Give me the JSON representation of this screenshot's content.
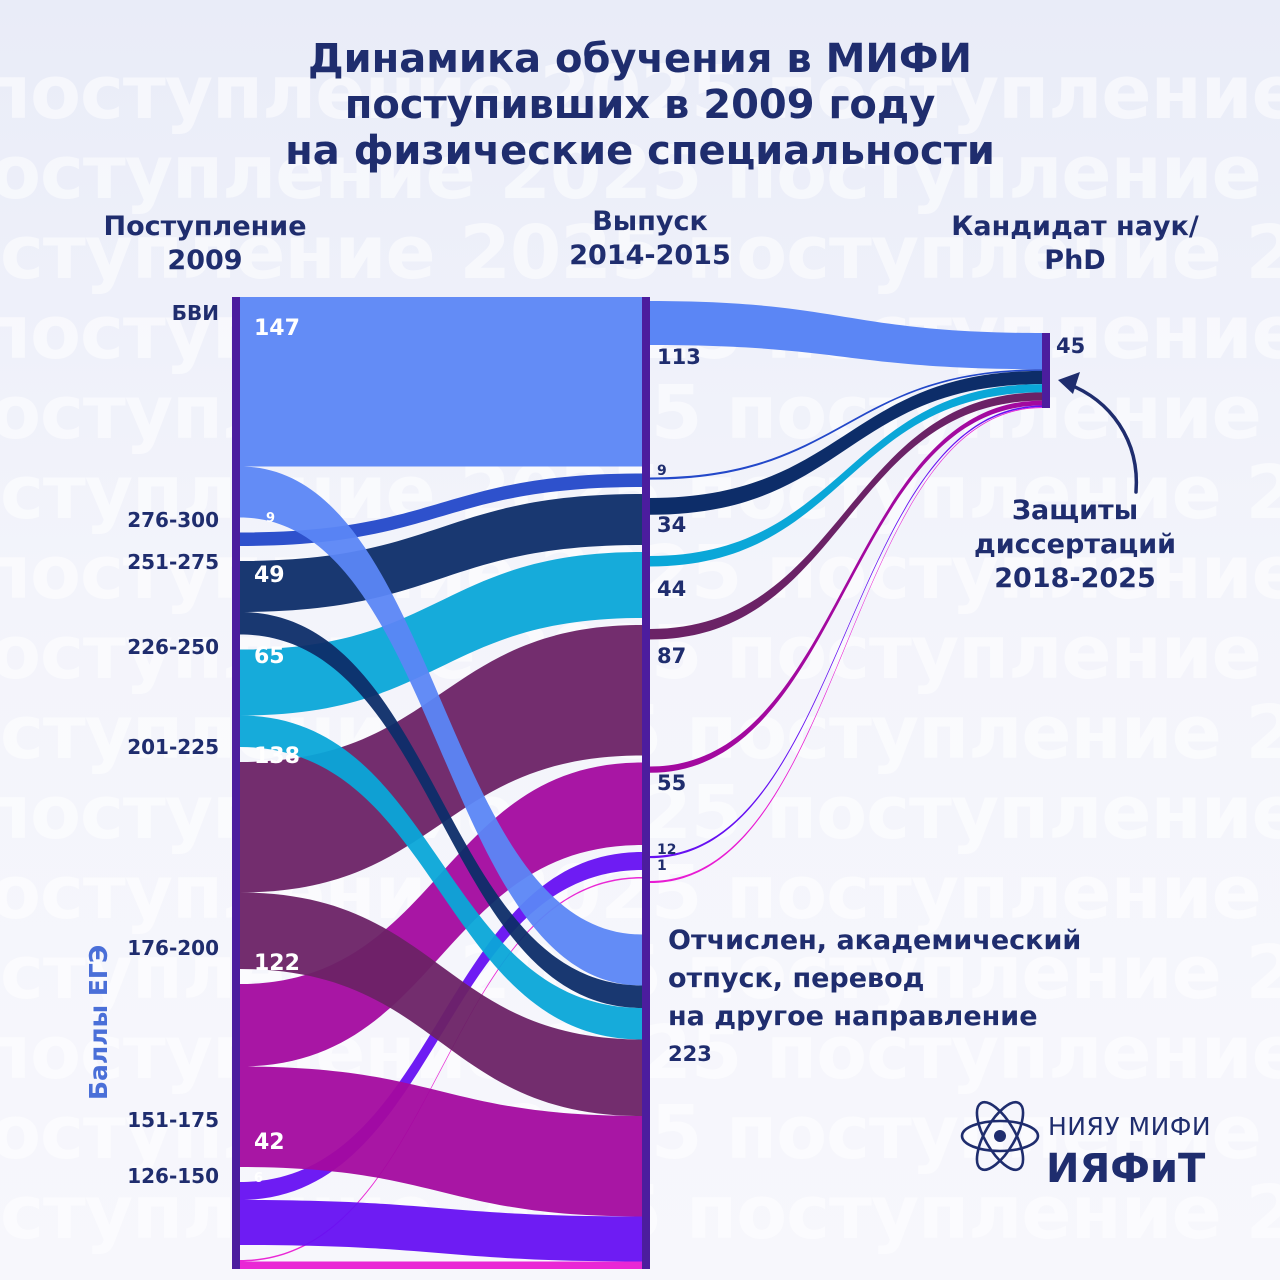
{
  "watermark_text": "поступление 2025",
  "title_lines": [
    "Динамика обучения в МИФИ",
    "поступивших в 2009 году",
    "на физические специальности"
  ],
  "columns": {
    "entry": [
      "Поступление",
      "2009"
    ],
    "graduation": [
      "Выпуск",
      "2014-2015"
    ],
    "phd": [
      "Кандидат наук/",
      "PhD"
    ]
  },
  "defense_annotation": [
    "Защиты",
    "диссертаций",
    "2018-2025"
  ],
  "dropout_label": [
    "Отчислен, академический",
    "отпуск, перевод",
    "на другое направление"
  ],
  "y_axis_label": "Баллы ЕГЭ",
  "logo": {
    "top": "НИЯУ МИФИ",
    "main": "ИЯФиТ"
  },
  "chart_data": {
    "type": "sankey",
    "stages": [
      "Поступление 2009",
      "Выпуск 2014-2015",
      "Кандидат наук/PhD"
    ],
    "entry_groups": [
      {
        "label": "БВИ",
        "value": 147,
        "color": "#5b86f5"
      },
      {
        "label": "276-300",
        "value": 9,
        "color": "#2348c9"
      },
      {
        "label": "251-275",
        "value": 49,
        "color": "#0d2d69"
      },
      {
        "label": "226-250",
        "value": 65,
        "color": "#0aa7d8"
      },
      {
        "label": "201-225",
        "value": 138,
        "color": "#6b2266"
      },
      {
        "label": "176-200",
        "value": 122,
        "color": "#a3099f"
      },
      {
        "label": "151-175",
        "value": 42,
        "color": "#6610f2"
      },
      {
        "label": "126-150",
        "value": 6,
        "color": "#e81bd3"
      }
    ],
    "graduated": [
      113,
      9,
      34,
      44,
      87,
      55,
      12,
      1
    ],
    "dropped_out_total": 223,
    "phd_total": 45
  },
  "colors": {
    "node_bar": "#4c1d9e",
    "text": "#1f2d6e",
    "annotation_arrow": "#1f2d6e"
  }
}
